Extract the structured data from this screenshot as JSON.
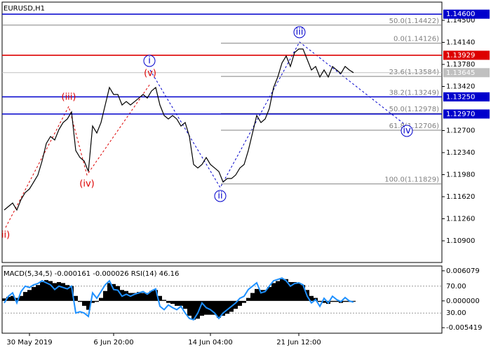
{
  "chart_data": [
    {
      "type": "line",
      "title": "EURUSD,H1",
      "categories": [
        null,
        null,
        null,
        null,
        null,
        null,
        "30 May 2019",
        null,
        null,
        null,
        null,
        null,
        null,
        null,
        null,
        null,
        null,
        null,
        null,
        null,
        null,
        null,
        null,
        null,
        null,
        null,
        "6 Jun 20:00",
        null,
        null,
        null,
        null,
        null,
        null,
        null,
        null,
        null,
        null,
        null,
        null,
        null,
        null,
        null,
        null,
        null,
        null,
        null,
        null,
        null,
        null,
        "14 Jun 04:00",
        null,
        null,
        null,
        null,
        null,
        null,
        null,
        null,
        null,
        null,
        null,
        null,
        null,
        null,
        null,
        null,
        null,
        null,
        null,
        null,
        "21 Jun 12:00",
        null,
        null,
        null,
        null,
        null,
        null,
        null,
        null,
        null,
        null,
        null,
        null,
        null
      ],
      "series": [
        {
          "color": "#000000",
          "values": [
            1.11403,
            1.1146,
            1.11517,
            1.11403,
            1.11574,
            1.11689,
            1.11746,
            1.1186,
            1.11974,
            1.12203,
            1.12489,
            1.12603,
            1.12546,
            1.12717,
            1.12831,
            1.12889,
            1.13003,
            1.12374,
            1.1226,
            1.12203,
            1.12031,
            1.12774,
            1.1266,
            1.12831,
            1.13117,
            1.13403,
            1.13289,
            1.13289,
            1.13117,
            1.13174,
            1.13117,
            1.13174,
            1.13231,
            1.13289,
            1.13231,
            1.13346,
            1.13403,
            1.13117,
            1.12946,
            1.12889,
            1.12946,
            1.12889,
            1.12774,
            1.12831,
            1.12603,
            1.12146,
            1.12089,
            1.12146,
            1.1226,
            1.12146,
            1.12089,
            1.12031,
            1.1186,
            1.11917,
            1.11917,
            1.11974,
            1.12089,
            1.12146,
            1.12374,
            1.1266,
            1.12946,
            1.12831,
            1.12889,
            1.1306,
            1.13403,
            1.13574,
            1.13803,
            1.13917,
            1.13746,
            1.13974,
            1.14031,
            1.14031,
            1.1386,
            1.13689,
            1.13746,
            1.13574,
            1.13689,
            1.13574,
            1.13746,
            1.13689,
            1.13631,
            1.13746,
            1.13689,
            1.13645
          ]
        }
      ],
      "ylim": [
        1.10546,
        1.14797
      ],
      "yticks": [
        {
          "value": 1.145,
          "label": "1.14500"
        },
        {
          "value": 1.1414,
          "label": "1.14140"
        },
        {
          "value": 1.1378,
          "label": "1.13780"
        },
        {
          "value": 1.1342,
          "label": "1.13420"
        },
        {
          "value": 1.127,
          "label": "1.12700"
        },
        {
          "value": 1.1234,
          "label": "1.12340"
        },
        {
          "value": 1.1198,
          "label": "1.11980"
        },
        {
          "value": 1.1162,
          "label": "1.11620"
        },
        {
          "value": 1.1126,
          "label": "1.11260"
        },
        {
          "value": 1.109,
          "label": "1.10900"
        }
      ],
      "levels": [
        {
          "value": 1.146,
          "label": "1.14600",
          "color": "#0000cc"
        },
        {
          "value": 1.13929,
          "label": "1.13929",
          "color": "#dd0000"
        },
        {
          "value": 1.1325,
          "label": "1.13250",
          "color": "#0000cc"
        },
        {
          "value": 1.1297,
          "label": "1.12970",
          "color": "#0000cc"
        }
      ],
      "last_price": {
        "value": 1.13645,
        "label": "1.13645",
        "color": "#c0c0c0"
      },
      "fib_levels": [
        {
          "value": 1.14422,
          "label": "50.0(1.14422)"
        },
        {
          "value": 1.14126,
          "label": "0.0(1.14126)"
        },
        {
          "value": 1.13584,
          "label": "23.6(1.13584)"
        },
        {
          "value": 1.13249,
          "label": "38.2(1.13249)"
        },
        {
          "value": 1.12978,
          "label": "50.0(1.12978)"
        },
        {
          "value": 1.12706,
          "label": "61.8(1.12706)"
        },
        {
          "value": 1.11829,
          "label": "100.0(1.11829)"
        }
      ],
      "wave_labels": [
        {
          "label": "i",
          "color": "#0000cc"
        },
        {
          "label": "ii",
          "color": "#0000cc"
        },
        {
          "label": "iii",
          "color": "#0000cc"
        },
        {
          "label": "iv",
          "color": "#0000cc"
        },
        {
          "label": "ii)",
          "color": "#dd0000"
        },
        {
          "label": "(iii)",
          "color": "#dd0000"
        },
        {
          "label": "(iv)",
          "color": "#dd0000"
        },
        {
          "label": "(v)",
          "color": "#dd0000"
        }
      ]
    },
    {
      "type": "macd",
      "title": "MACD(5,34,5) -0.000161 -0.000026 RSI(14) 46.16",
      "series": [
        {
          "color": "#000000",
          "values": [
            0.0005,
            0.0008,
            0.001,
            0.0006,
            0.001,
            0.0018,
            0.0022,
            0.0028,
            0.0032,
            0.0038,
            0.0042,
            0.004,
            0.0036,
            0.0038,
            0.0036,
            0.0032,
            0.003,
            0.001,
            -0.0002,
            -0.001,
            -0.0018,
            -0.0004,
            -0.0002,
            0.0006,
            0.002,
            0.0036,
            0.0034,
            0.003,
            0.0022,
            0.002,
            0.0016,
            0.0016,
            0.0018,
            0.0016,
            0.0016,
            0.002,
            0.0022,
            0.001,
            0.0002,
            -0.0004,
            -0.0006,
            -0.001,
            -0.001,
            -0.0016,
            -0.003,
            -0.0038,
            -0.0036,
            -0.003,
            -0.0028,
            -0.0028,
            -0.0028,
            -0.0034,
            -0.003,
            -0.0026,
            -0.0022,
            -0.0016,
            -0.001,
            -0.0004,
            0.0006,
            0.0016,
            0.0024,
            0.0022,
            0.0022,
            0.0028,
            0.0036,
            0.004,
            0.0044,
            0.0044,
            0.0038,
            0.0038,
            0.0036,
            0.0032,
            0.0022,
            0.001,
            0.0006,
            -0.0002,
            -0.0004,
            -0.0006,
            -0.0002,
            -0.0002,
            -0.0004,
            -0.0002,
            -0.0002,
            -0.000161
          ]
        },
        {
          "color": "#1e90ff",
          "axis": "y2",
          "values": [
            45,
            55,
            60,
            45,
            62,
            70,
            68,
            72,
            74,
            78,
            75,
            72,
            65,
            70,
            68,
            66,
            70,
            30,
            32,
            30,
            25,
            60,
            52,
            62,
            72,
            78,
            65,
            64,
            55,
            58,
            55,
            58,
            60,
            62,
            58,
            63,
            66,
            40,
            35,
            42,
            38,
            35,
            40,
            30,
            22,
            20,
            30,
            45,
            38,
            35,
            30,
            22,
            30,
            35,
            40,
            45,
            52,
            55,
            65,
            70,
            75,
            60,
            62,
            70,
            78,
            80,
            82,
            78,
            70,
            74,
            75,
            72,
            55,
            45,
            50,
            40,
            52,
            45,
            55,
            50,
            47,
            53,
            48,
            46.16
          ]
        }
      ],
      "ylim": [
        -0.00653,
        0.00705
      ],
      "yticks": [
        0.006079,
        {
          "value": 0,
          "label": "0.000000"
        },
        -0.005419
      ],
      "y2lim": [
        0,
        100
      ],
      "y2ticks": [
        {
          "value": 70,
          "label": "70.00"
        },
        {
          "value": 30,
          "label": "30.00"
        }
      ]
    }
  ]
}
